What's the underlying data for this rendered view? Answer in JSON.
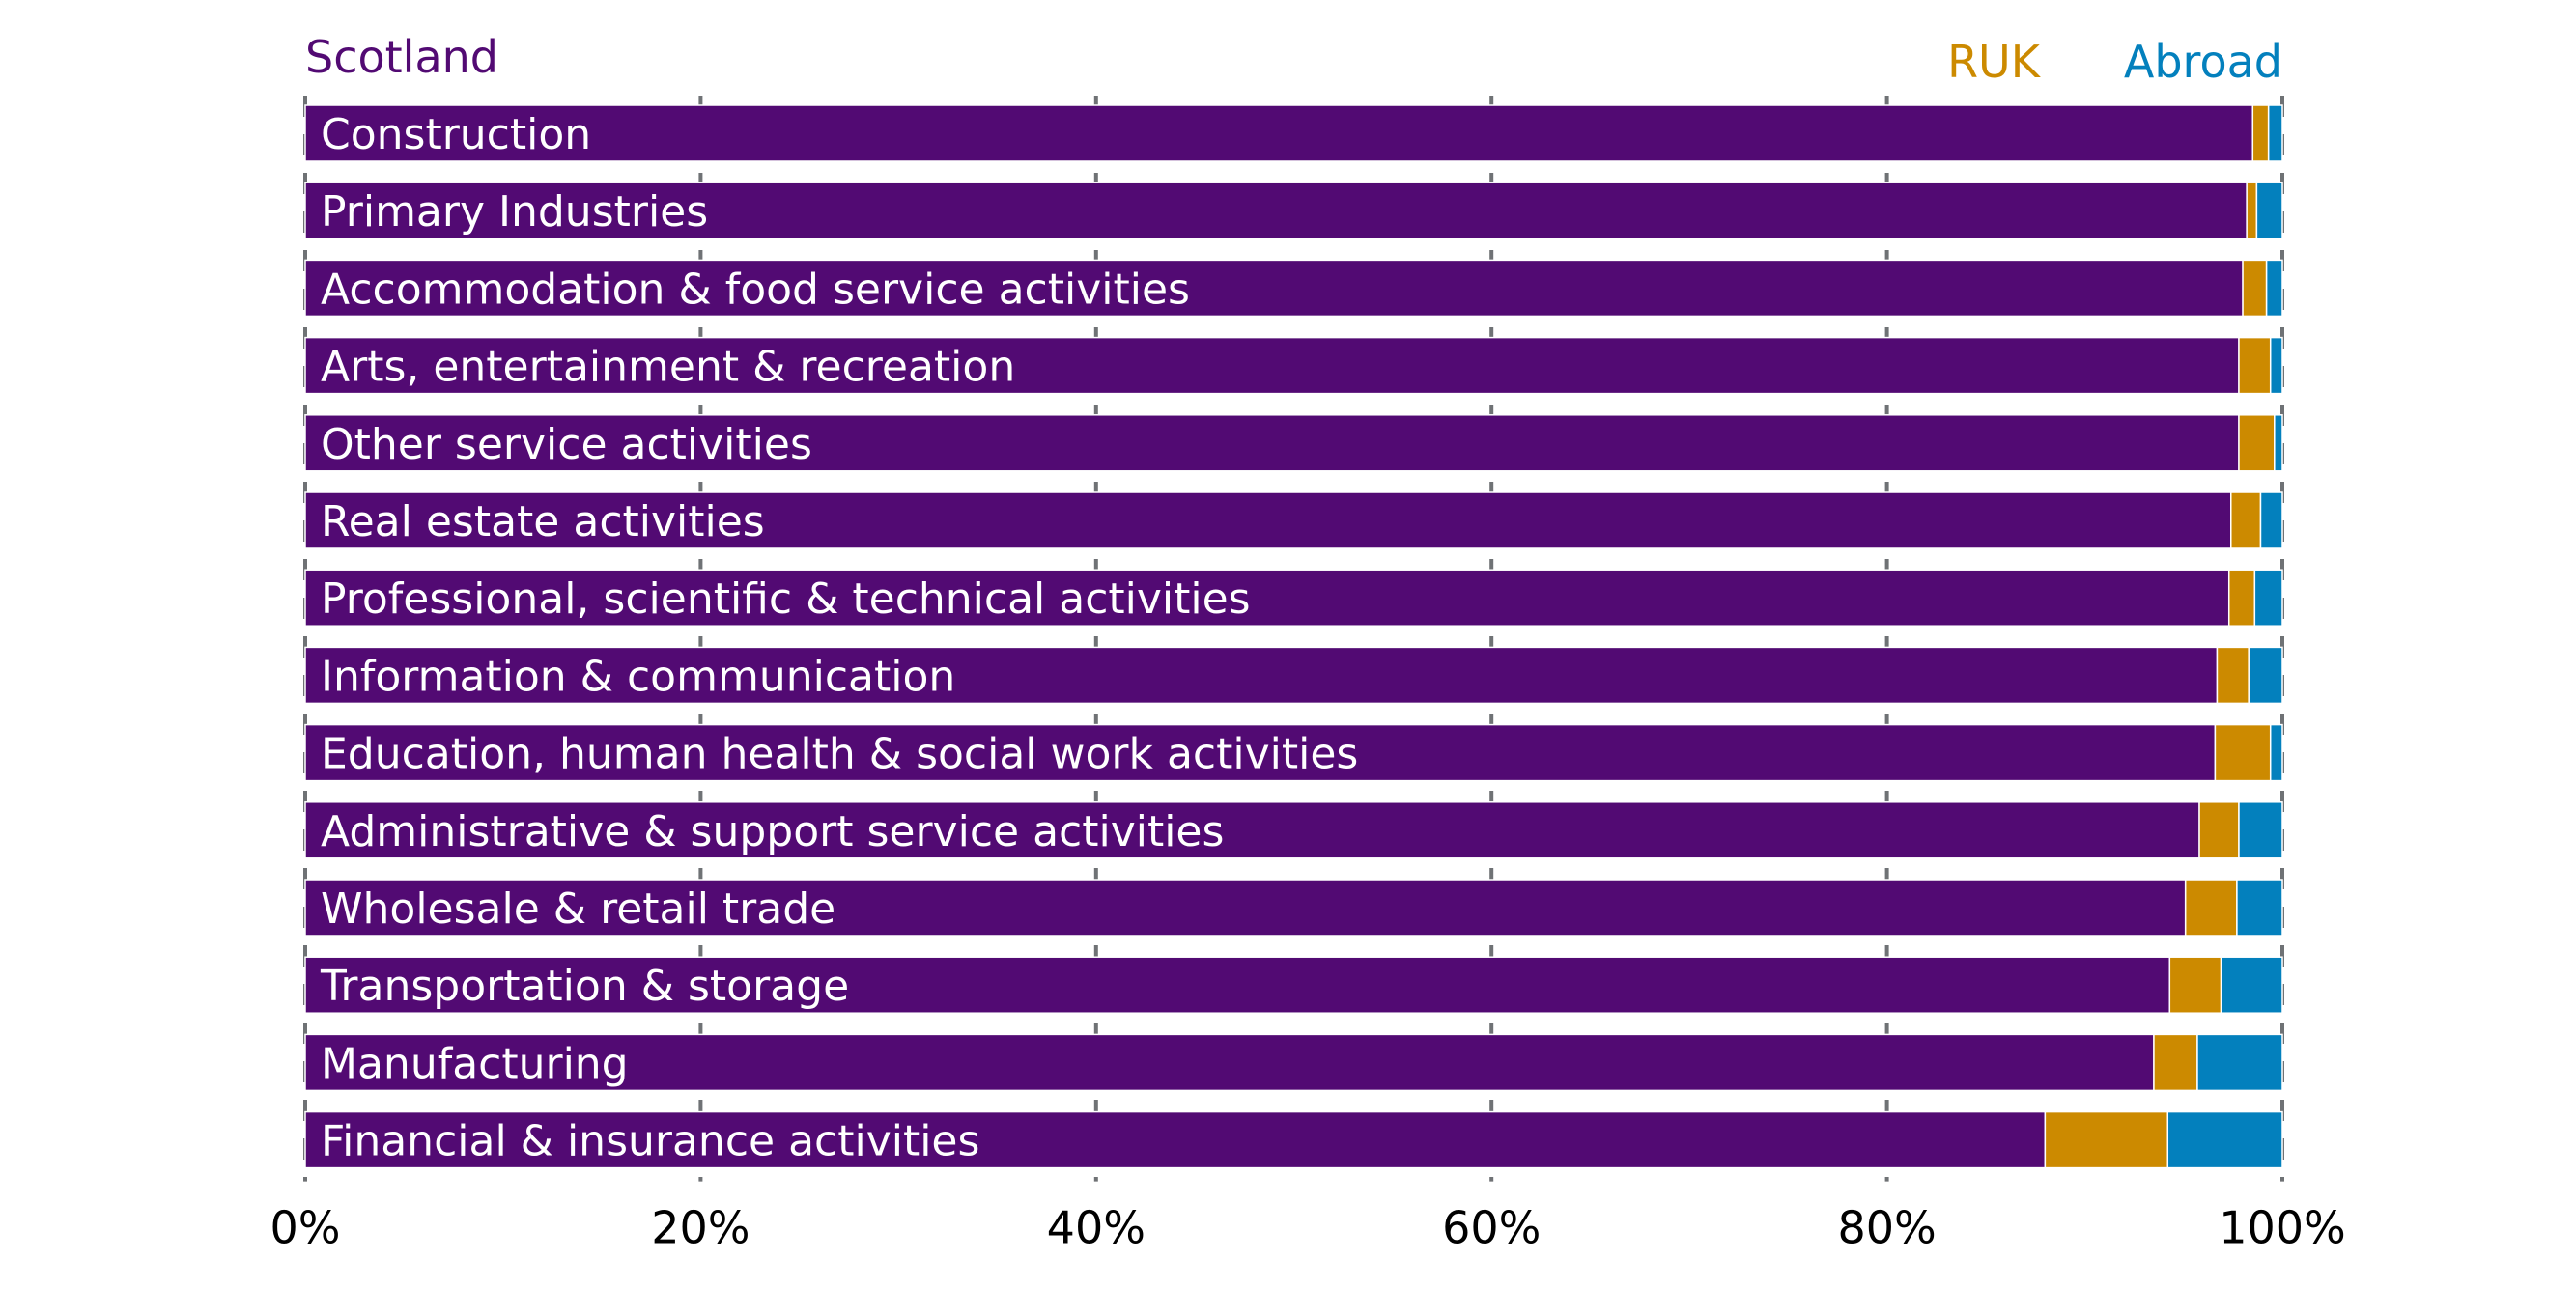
{
  "chart_data": {
    "type": "bar",
    "orientation": "horizontal",
    "stacked": true,
    "categories": [
      "Construction",
      "Primary Industries",
      "Accommodation & food service activities",
      "Arts, entertainment & recreation",
      "Other service activities",
      "Real estate activities",
      "Professional, scientific & technical activities",
      "Information & communication",
      "Education, human health & social work activities",
      "Administrative & support service activities",
      "Wholesale & retail trade",
      "Transportation & storage",
      "Manufacturing",
      "Financial & insurance activities"
    ],
    "series": [
      {
        "name": "Scotland",
        "color": "#520a73",
        "values": [
          98.5,
          98.2,
          98.0,
          97.8,
          97.8,
          97.4,
          97.3,
          96.7,
          96.6,
          95.8,
          95.1,
          94.3,
          93.5,
          88.0
        ]
      },
      {
        "name": "RUK",
        "color": "#cc8a00",
        "values": [
          0.8,
          0.5,
          1.2,
          1.6,
          1.8,
          1.5,
          1.3,
          1.6,
          2.8,
          2.0,
          2.6,
          2.6,
          2.2,
          6.2
        ]
      },
      {
        "name": "Abroad",
        "color": "#0380bd",
        "values": [
          0.7,
          1.3,
          0.8,
          0.6,
          0.4,
          1.1,
          1.4,
          1.7,
          0.6,
          2.2,
          2.3,
          3.1,
          4.3,
          5.8
        ]
      }
    ],
    "xlim": [
      0,
      100
    ],
    "xticks": [
      "0%",
      "20%",
      "40%",
      "60%",
      "80%",
      "100%"
    ],
    "legend_placement": "top",
    "grid": "dashed vertical"
  }
}
